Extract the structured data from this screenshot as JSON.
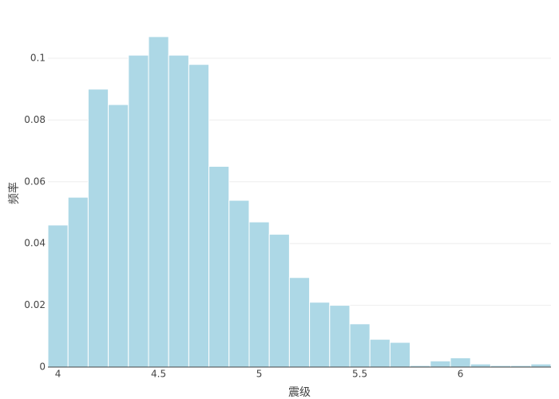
{
  "chart_data": {
    "type": "histogram",
    "x_label": "震级",
    "y_label": "频率",
    "bins": [
      3.95,
      4.05,
      4.15,
      4.25,
      4.35,
      4.45,
      4.55,
      4.65,
      4.75,
      4.85,
      4.95,
      5.05,
      5.15,
      5.25,
      5.35,
      5.45,
      5.55,
      5.65,
      5.75,
      5.85,
      5.95,
      6.05,
      6.15,
      6.25,
      6.35,
      6.45
    ],
    "values": [
      0.046,
      0.055,
      0.09,
      0.085,
      0.101,
      0.107,
      0.101,
      0.098,
      0.065,
      0.054,
      0.047,
      0.043,
      0.029,
      0.021,
      0.02,
      0.014,
      0.009,
      0.008,
      0.0005,
      0.002,
      0.003,
      0.001,
      0.0005,
      0.0005,
      0.001
    ],
    "color": "#add8e6",
    "xlim": [
      3.95,
      6.45
    ],
    "xticks": [
      4,
      4.5,
      5,
      5.5,
      6
    ],
    "ylim": [
      0,
      0.1124
    ],
    "yticks": [
      0,
      0.02,
      0.04,
      0.06,
      0.08,
      0.1
    ],
    "grid": true
  }
}
